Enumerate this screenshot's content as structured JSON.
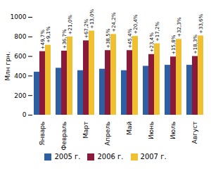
{
  "chart_data": {
    "type": "bar",
    "categories": [
      "Январь",
      "Февраль",
      "Март",
      "Апрель",
      "Май",
      "Июнь",
      "Июль",
      "Август"
    ],
    "series": [
      {
        "name": "2005 г.",
        "color": "#2e5fa3",
        "values": [
          440,
          480,
          455,
          470,
          455,
          500,
          510,
          510
        ]
      },
      {
        "name": "2006 г.",
        "color": "#8b1a3a",
        "values": [
          650,
          655,
          760,
          660,
          660,
          620,
          595,
          600
        ],
        "annotations": [
          "+49,7%",
          "+36,7%",
          "+67,2%",
          "+38,5%",
          "+45,4%",
          "+23,4%",
          "+15,8%",
          "+18,3%"
        ]
      },
      {
        "name": "2007 г.",
        "color": "#f0c030",
        "values": [
          715,
          800,
          860,
          825,
          805,
          730,
          775,
          810
        ],
        "annotations": [
          "+9,1%",
          "+21,0%",
          "+13,0%",
          "+24,2%",
          "+20,4%",
          "+17,2%",
          "+32,3%",
          "+33,6%"
        ]
      }
    ],
    "ylabel": "Млн грн.",
    "ylim": [
      0,
      1000
    ],
    "yticks": [
      0,
      200,
      400,
      600,
      800,
      1000
    ],
    "grid": false,
    "legend": "bottom"
  }
}
